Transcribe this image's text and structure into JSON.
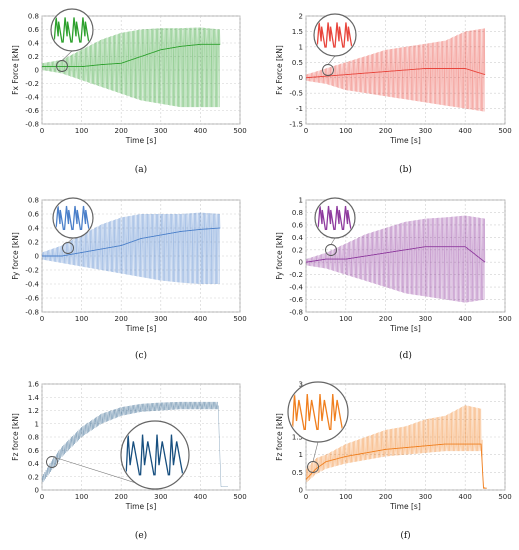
{
  "figure": {
    "panels": [
      {
        "label": "(a)",
        "ylabel": "Fx Force [kN]",
        "xlabel": "Time [s]",
        "color": "#2ca02c",
        "yticks": [
          "0.8",
          "0.6",
          "0.4",
          "0.2",
          "0",
          "-0.2",
          "-0.4",
          "-0.6",
          "-0.8"
        ],
        "xticks": [
          "0",
          "100",
          "200",
          "300",
          "400",
          "500"
        ]
      },
      {
        "label": "(b)",
        "ylabel": "Fx Force [kN]",
        "xlabel": "Time [s]",
        "color": "#e8453c",
        "yticks": [
          "2",
          "1.5",
          "1",
          "0.5",
          "0",
          "-0.5",
          "-1",
          "-1.5"
        ],
        "xticks": [
          "0",
          "100",
          "200",
          "300",
          "400",
          "500"
        ]
      },
      {
        "label": "(c)",
        "ylabel": "Fy force [kN]",
        "xlabel": "Time [s]",
        "color": "#4a7fc9",
        "yticks": [
          "0.8",
          "0.6",
          "0.4",
          "0.2",
          "0",
          "-0.2",
          "-0.4",
          "-0.6",
          "-0.8"
        ],
        "xticks": [
          "0",
          "100",
          "200",
          "300",
          "400",
          "500"
        ]
      },
      {
        "label": "(d)",
        "ylabel": "Fy force [kN]",
        "xlabel": "Time [s]",
        "color": "#8e3a9e",
        "yticks": [
          "1",
          "0.8",
          "0.6",
          "0.4",
          "0.2",
          "0",
          "-0.2",
          "-0.4",
          "-0.6",
          "-0.8"
        ],
        "xticks": [
          "0",
          "100",
          "200",
          "300",
          "400",
          "500"
        ]
      },
      {
        "label": "(e)",
        "ylabel": "Fz force [kN]",
        "xlabel": "Time [s]",
        "color": "#174f7f",
        "yticks": [
          "1.6",
          "1.4",
          "1.2",
          "1",
          "0.8",
          "0.6",
          "0.4",
          "0.2",
          "0"
        ],
        "xticks": [
          "0",
          "100",
          "200",
          "300",
          "400",
          "500"
        ]
      },
      {
        "label": "(f)",
        "ylabel": "Fz force [kN]",
        "xlabel": "Time [s]",
        "color": "#f07f1e",
        "yticks": [
          "3",
          "2.5",
          "2",
          "1.5",
          "1",
          "0.5",
          "0"
        ],
        "xticks": [
          "0",
          "100",
          "200",
          "300",
          "400",
          "500"
        ]
      }
    ]
  },
  "chart_data": [
    {
      "type": "line",
      "title": "",
      "xlabel": "Time [s]",
      "ylabel": "Fx Force [kN]",
      "xlim": [
        0,
        500
      ],
      "ylim": [
        -0.8,
        0.8
      ],
      "grid": true,
      "color": "#2ca02c",
      "envelope": {
        "x": [
          0,
          50,
          100,
          150,
          200,
          250,
          300,
          350,
          400,
          450
        ],
        "upper": [
          0.1,
          0.15,
          0.3,
          0.45,
          0.55,
          0.6,
          0.62,
          0.62,
          0.63,
          0.6
        ],
        "lower": [
          0.0,
          -0.05,
          -0.15,
          -0.25,
          -0.35,
          -0.45,
          -0.5,
          -0.55,
          -0.55,
          -0.55
        ],
        "mean": [
          0.05,
          0.05,
          0.05,
          0.08,
          0.1,
          0.2,
          0.3,
          0.35,
          0.38,
          0.38
        ]
      }
    },
    {
      "type": "line",
      "title": "",
      "xlabel": "Time [s]",
      "ylabel": "Fx Force [kN]",
      "xlim": [
        0,
        500
      ],
      "ylim": [
        -1.5,
        2
      ],
      "grid": true,
      "color": "#e8453c",
      "envelope": {
        "x": [
          0,
          50,
          100,
          150,
          200,
          250,
          300,
          350,
          400,
          450
        ],
        "upper": [
          0.1,
          0.3,
          0.5,
          0.7,
          0.9,
          1.0,
          1.1,
          1.2,
          1.5,
          1.6
        ],
        "lower": [
          -0.1,
          -0.2,
          -0.4,
          -0.5,
          -0.6,
          -0.7,
          -0.8,
          -0.9,
          -1.0,
          -1.1
        ],
        "mean": [
          0.0,
          0.05,
          0.1,
          0.15,
          0.2,
          0.25,
          0.3,
          0.3,
          0.3,
          0.1
        ]
      }
    },
    {
      "type": "line",
      "title": "",
      "xlabel": "Time [s]",
      "ylabel": "Fy force [kN]",
      "xlim": [
        0,
        500
      ],
      "ylim": [
        -0.8,
        0.8
      ],
      "grid": true,
      "color": "#4a7fc9",
      "envelope": {
        "x": [
          0,
          50,
          100,
          150,
          200,
          250,
          300,
          350,
          400,
          450
        ],
        "upper": [
          0.05,
          0.15,
          0.3,
          0.45,
          0.55,
          0.6,
          0.6,
          0.6,
          0.62,
          0.6
        ],
        "lower": [
          -0.05,
          -0.1,
          -0.15,
          -0.2,
          -0.25,
          -0.3,
          -0.35,
          -0.38,
          -0.4,
          -0.4
        ],
        "mean": [
          0.0,
          0.0,
          0.05,
          0.1,
          0.15,
          0.25,
          0.3,
          0.35,
          0.38,
          0.4
        ]
      }
    },
    {
      "type": "line",
      "title": "",
      "xlabel": "Time [s]",
      "ylabel": "Fy force [kN]",
      "xlim": [
        0,
        500
      ],
      "ylim": [
        -0.8,
        1
      ],
      "grid": true,
      "color": "#8e3a9e",
      "envelope": {
        "x": [
          0,
          50,
          100,
          150,
          200,
          250,
          300,
          350,
          400,
          450
        ],
        "upper": [
          0.05,
          0.15,
          0.3,
          0.45,
          0.55,
          0.65,
          0.7,
          0.72,
          0.75,
          0.7
        ],
        "lower": [
          -0.05,
          -0.1,
          -0.2,
          -0.3,
          -0.4,
          -0.5,
          -0.55,
          -0.6,
          -0.65,
          -0.6
        ],
        "mean": [
          0.0,
          0.05,
          0.05,
          0.1,
          0.15,
          0.2,
          0.25,
          0.25,
          0.25,
          0.0
        ]
      }
    },
    {
      "type": "line",
      "title": "",
      "xlabel": "Time [s]",
      "ylabel": "Fz force [kN]",
      "xlim": [
        0,
        500
      ],
      "ylim": [
        0,
        1.6
      ],
      "grid": true,
      "color": "#174f7f",
      "envelope": {
        "x": [
          0,
          25,
          50,
          100,
          150,
          200,
          250,
          300,
          350,
          400,
          445,
          452,
          470
        ],
        "upper": [
          0.2,
          0.45,
          0.65,
          0.95,
          1.15,
          1.25,
          1.3,
          1.32,
          1.33,
          1.33,
          1.33,
          0.05,
          0.05
        ],
        "lower": [
          0.1,
          0.3,
          0.5,
          0.8,
          1.0,
          1.12,
          1.18,
          1.2,
          1.22,
          1.22,
          1.22,
          0.05,
          0.05
        ]
      }
    },
    {
      "type": "line",
      "title": "",
      "xlabel": "Time [s]",
      "ylabel": "Fz force [kN]",
      "xlim": [
        0,
        500
      ],
      "ylim": [
        0,
        3
      ],
      "grid": true,
      "color": "#f07f1e",
      "envelope": {
        "x": [
          0,
          25,
          50,
          100,
          150,
          200,
          250,
          300,
          350,
          400,
          440,
          446,
          455
        ],
        "upper": [
          0.6,
          0.9,
          1.0,
          1.3,
          1.5,
          1.7,
          1.8,
          2.0,
          2.1,
          2.4,
          2.3,
          0.1,
          0.05
        ],
        "lower": [
          0.2,
          0.45,
          0.6,
          0.75,
          0.85,
          0.95,
          1.0,
          1.05,
          1.1,
          1.1,
          1.1,
          0.05,
          0.05
        ],
        "mean": [
          0.3,
          0.6,
          0.8,
          0.95,
          1.05,
          1.15,
          1.2,
          1.25,
          1.3,
          1.3,
          1.3,
          0.05,
          0.05
        ]
      }
    }
  ]
}
